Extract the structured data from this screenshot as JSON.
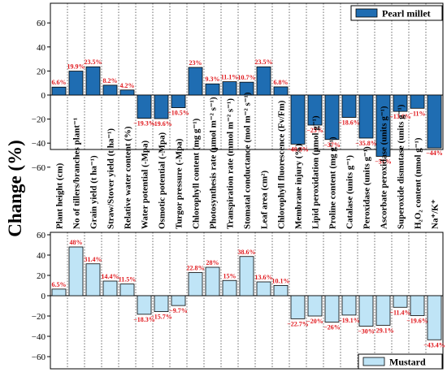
{
  "ylabel": "Change (%)",
  "colors": {
    "pearl_fill": "#1f6db2",
    "mustard_fill": "#bfe4f6",
    "bar_stroke": "#000000",
    "label_red": "#e0161b",
    "grid": "#444444"
  },
  "categories": [
    "Plant height (cm)",
    "No of tillers/branches plant⁻¹",
    "Grain yield (t ha⁻¹)",
    "Straw/Stover yield (t ha⁻¹)",
    "Relative water content (%)",
    "Water potential (-Mpa)",
    "Osmotic potential (-Mpa)",
    "Turgor pressure (-Mpa)",
    "Chlorophyll content (mg g⁻¹)",
    "Photosynthesis rate (µmol m⁻² s⁻¹)",
    "Transpiration rate (mmol m⁻² s⁻¹)",
    "Stomatal conductance (mol m⁻² s⁻¹)",
    "Leaf area (cm²)",
    "Chlorophyll fluorescence (Fv/Fm)",
    "Membrane injury (%)",
    "Lipid peroxidation (µmol g⁻¹)",
    "Proline content (mg g⁻¹)",
    "Catalase (units g⁻¹)",
    "Peroxidase (units g⁻¹)",
    "Ascorbate peroxidase (units g⁻¹)",
    "Superoxide dismutase (units g⁻¹)",
    "H₂O₂ content (nmol g⁻¹)",
    "Na⁺/K⁺"
  ],
  "chart_data": [
    {
      "type": "bar",
      "legend": "Pearl millet",
      "legend_position": "top-right",
      "ylim": [
        -80,
        70
      ],
      "yticks": [
        "60",
        "40",
        "20",
        "0",
        "−20",
        "−40",
        "−60"
      ],
      "values": [
        6.6,
        19.9,
        23.5,
        8.2,
        4.2,
        -19.3,
        -19.6,
        -10.5,
        23,
        9.3,
        11.1,
        10.7,
        23.5,
        6.8,
        -40.8,
        -25,
        -37,
        -18.6,
        -35.8,
        -51,
        -13.6,
        -11,
        -44
      ],
      "labels": [
        "6.6%",
        "19.9%",
        "23.5%",
        "8.2%",
        "4.2%",
        "−19.3%",
        "−19.6%",
        "−10.5%",
        "23%",
        "9.3%",
        "11.1%",
        "10.7%",
        "23.5%",
        "6.8%",
        "−40.8%",
        "−25%",
        "−37%",
        "−18.6%",
        "−35.8%",
        "−51%",
        "−13.6%",
        "−11%",
        "−44%"
      ]
    },
    {
      "type": "bar",
      "legend": "Mustard",
      "legend_position": "bottom-right",
      "ylim": [
        -70,
        70
      ],
      "yticks": [
        "60",
        "40",
        "20",
        "0",
        "−20",
        "−40",
        "−60"
      ],
      "values": [
        6.5,
        48,
        31.4,
        14.4,
        11.5,
        -18.3,
        -15.7,
        -9.7,
        22.8,
        28,
        15,
        38.6,
        13.6,
        10.1,
        -22.7,
        -20,
        -26,
        -19.1,
        -30,
        -29.1,
        -11.4,
        -19.6,
        -43.4
      ],
      "labels": [
        "6.5%",
        "48%",
        "31.4%",
        "14.4%",
        "11.5%",
        "−18.3%",
        "−15.7%",
        "−9.7%",
        "22.8%",
        "28%",
        "15%",
        "38.6%",
        "13.6%",
        "10.1%",
        "−22.7%",
        "−20%",
        "−26%",
        "−19.1%",
        "−30%",
        "−29.1%",
        "−11.4%",
        "−19.6%",
        "−43.4%"
      ]
    }
  ]
}
